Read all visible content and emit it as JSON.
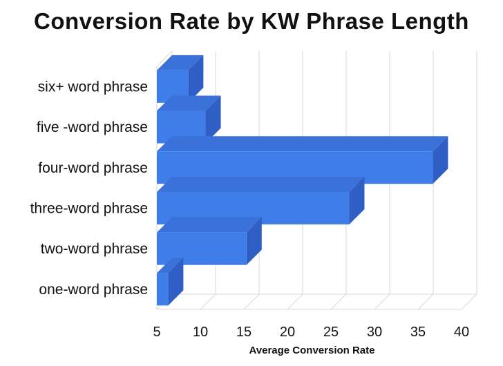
{
  "chart_data": {
    "type": "bar",
    "orientation": "horizontal",
    "title": "Conversion Rate by KW Phrase Length",
    "xlabel": "Average Conversion Rate",
    "ylabel": "",
    "categories": [
      "six+ word phrase",
      "five -word phrase",
      "four-word phrase",
      "three-word phrase",
      "two-word phrase",
      "one-word phrase"
    ],
    "values": [
      8.6,
      10.6,
      36.7,
      27.1,
      15.3,
      6.3
    ],
    "xlim": [
      5,
      40
    ],
    "xticks": [
      "5",
      "10",
      "15",
      "20",
      "25",
      "30",
      "35",
      "40"
    ],
    "grid": true,
    "bar_color": "#3f7de8"
  }
}
